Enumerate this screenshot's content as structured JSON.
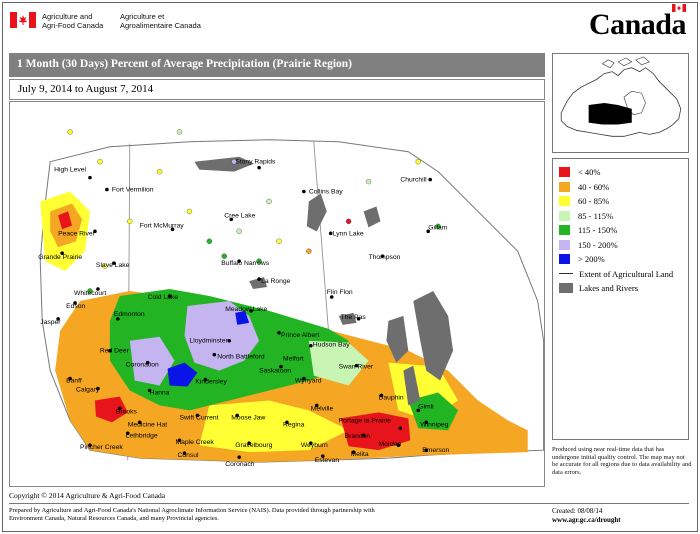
{
  "header": {
    "dept_en_line1": "Agriculture and",
    "dept_en_line2": "Agri-Food Canada",
    "dept_fr_line1": "Agriculture et",
    "dept_fr_line2": "Agroalimentaire Canada",
    "wordmark": "Canada"
  },
  "map_title": "1 Month (30 Days) Percent of Average Precipitation  (Prairie Region)",
  "date_range": "July 9, 2014 to August 7, 2014",
  "legend": {
    "items": [
      {
        "label": "< 40%",
        "color": "#e8141c"
      },
      {
        "label": "40 - 60%",
        "color": "#f5a623"
      },
      {
        "label": "60 - 85%",
        "color": "#ffff33"
      },
      {
        "label": "85 - 115%",
        "color": "#c8f5b4"
      },
      {
        "label": "115 - 150%",
        "color": "#22b422"
      },
      {
        "label": "150 - 200%",
        "color": "#c4b4f0"
      },
      {
        "label": "> 200%",
        "color": "#0a14e6"
      }
    ],
    "extent_label": "Extent of Agricultural Land",
    "lakes_label": "Lakes and Rivers",
    "lakes_color": "#6e6e6e"
  },
  "disclaimer": "Produced using near real-time data that has undergone initial quality control. The map may not be accurate for all regions due to data availability and data errors.",
  "cities": {
    "high_level": "High Level",
    "fort_vermilion": "Fort Vermilion",
    "stony_rapids": "Stony Rapids",
    "collins_bay": "Collins Bay",
    "churchill": "Churchill",
    "fort_mcmurray": "Fort McMurray",
    "cree_lake": "Cree Lake",
    "peace_river": "Peace River",
    "lynn_lake": "Lynn Lake",
    "gillam": "Gillam",
    "grande_prairie": "Grande Prairie",
    "slave_lake": "Slave Lake",
    "buffalo_narrows": "Buffalo Narrows",
    "thompson": "Thompson",
    "whitecourt": "Whitecourt",
    "la_ronge": "La Ronge",
    "cold_lake": "Cold Lake",
    "flin_flon": "Flin Flon",
    "edson": "Edson",
    "edmonton": "Edmonton",
    "meadow_lake": "Meadow Lake",
    "the_pas": "The Pas",
    "jasper": "Jasper",
    "lloydminster": "Lloydminster",
    "prince_albert": "Prince Albert",
    "red_deer": "Red Deer",
    "north_battleford": "North Battleford",
    "hudson_bay": "Hudson Bay",
    "melfort": "Melfort",
    "coronation": "Coronation",
    "banff": "Banff",
    "saskatoon": "Saskatoon",
    "swan_river": "Swan River",
    "hanna": "Hanna",
    "kindersley": "Kindersley",
    "wynyard": "Wynyard",
    "calgary": "Calgary",
    "dauphin": "Dauphin",
    "brooks": "Brooks",
    "melville": "Melville",
    "gimli": "Gimli",
    "swift_current": "Swift Current",
    "moose_jaw": "Moose Jaw",
    "medicine_hat": "Medicine Hat",
    "regina": "Regina",
    "lethbridge": "Lethbridge",
    "portage": "Portage la Prairie",
    "winnipeg": "Winnipeg",
    "pincher_creek": "Pincher Creek",
    "maple_creek": "Maple Creek",
    "brandon": "Brandon",
    "consul": "Consul",
    "gravelbourg": "Gravelbourg",
    "weyburn": "Weyburn",
    "morden": "Morden",
    "emerson": "Emerson",
    "coronach": "Coronach",
    "estevan": "Estevan",
    "melita": "Melita"
  },
  "footer": {
    "copyright": "Copyright © 2014 Agriculture & Agri-Food Canada",
    "prepared_line1": "Prepared by Agriculture and Agri-Food Canada's National Agroclimate Information Service (NAIS).  Data provided through partnership with",
    "prepared_line2": "Environment Canada, Natural Resources Canada, and many Provincial agencies.",
    "created": "Created: 08/08/14",
    "url": "www.agr.gc.ca/drought"
  }
}
